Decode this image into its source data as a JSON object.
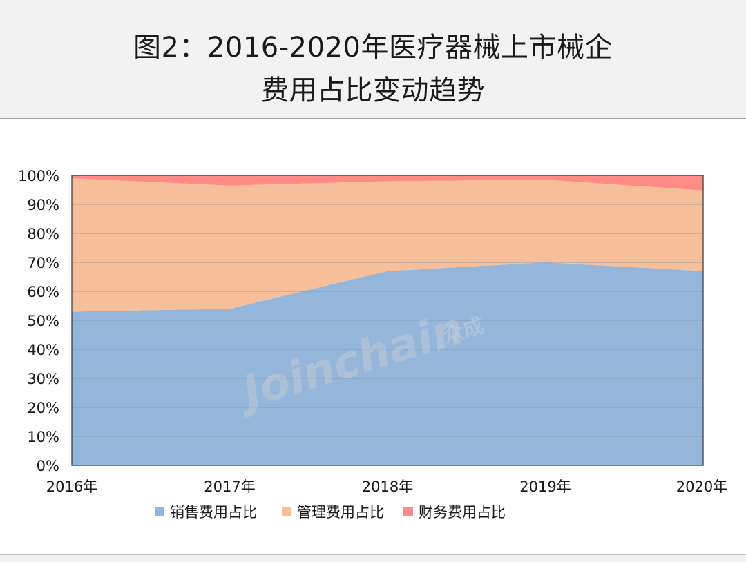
{
  "title_lines": [
    "图2：2016-2020年医疗器械上市械企",
    "费用占比变动趋势"
  ],
  "watermark": {
    "text": "Joinchain",
    "cn": "众成"
  },
  "chart_data": {
    "type": "area",
    "stacked": true,
    "categories": [
      "2016年",
      "2017年",
      "2018年",
      "2019年",
      "2020年"
    ],
    "series": [
      {
        "name": "销售费用占比",
        "color": "#95b6db",
        "values": [
          53,
          54,
          67,
          70,
          67
        ]
      },
      {
        "name": "管理费用占比",
        "color": "#f6bf9a",
        "values": [
          46,
          42.5,
          31,
          28.5,
          27.8
        ]
      },
      {
        "name": "财务费用占比",
        "color": "#ff8a86",
        "values": [
          1,
          3.5,
          2,
          1.5,
          5.2
        ]
      }
    ],
    "ylim": [
      0,
      100
    ],
    "yticks": [
      "0%",
      "10%",
      "20%",
      "30%",
      "40%",
      "50%",
      "60%",
      "70%",
      "80%",
      "90%",
      "100%"
    ],
    "grid": true,
    "legend_position": "bottom"
  }
}
